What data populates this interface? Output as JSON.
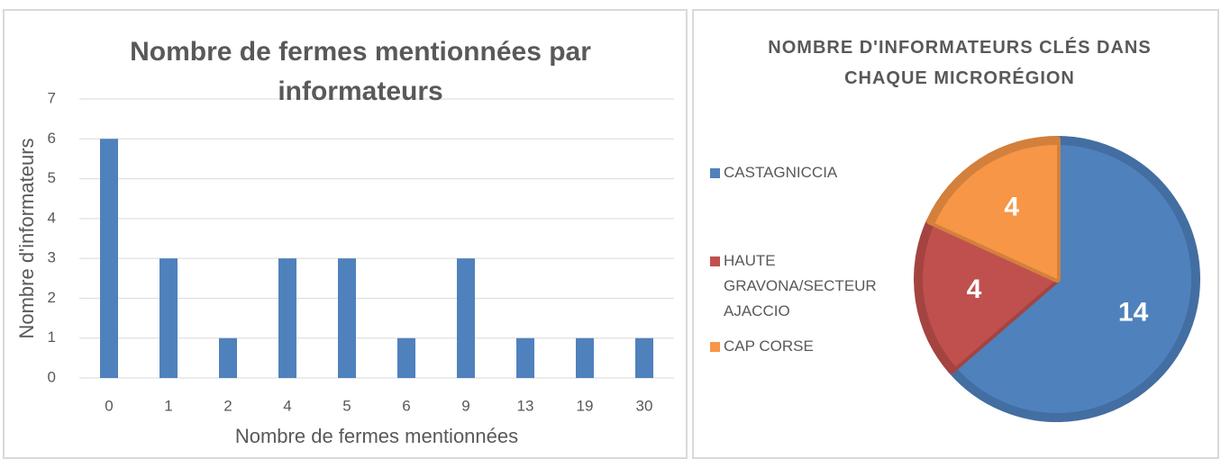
{
  "chart_data": [
    {
      "type": "bar",
      "title": "Nombre de fermes mentionnées par informateurs",
      "categories": [
        "0",
        "1",
        "2",
        "4",
        "5",
        "6",
        "9",
        "13",
        "19",
        "30"
      ],
      "values": [
        6,
        3,
        1,
        3,
        3,
        1,
        3,
        1,
        1,
        1
      ],
      "color": "#4f81bd",
      "ylim": [
        0,
        7
      ],
      "yticks": [
        0,
        1,
        2,
        3,
        4,
        5,
        6,
        7
      ],
      "grid": true,
      "xlabel": "Nombre de fermes mentionnées",
      "ylabel": "Nombre d'informateurs"
    },
    {
      "type": "pie",
      "title": "NOMBRE D'INFORMATEURS CLÉS DANS CHAQUE MICRORÉGION",
      "categories": [
        "CASTAGNICCIA",
        "HAUTE GRAVONA/SECTEUR AJACCIO",
        "CAP CORSE"
      ],
      "values": [
        14,
        4,
        4
      ],
      "colors": [
        "#4f81bd",
        "#c0504d",
        "#f79646"
      ],
      "legend": "left"
    }
  ]
}
